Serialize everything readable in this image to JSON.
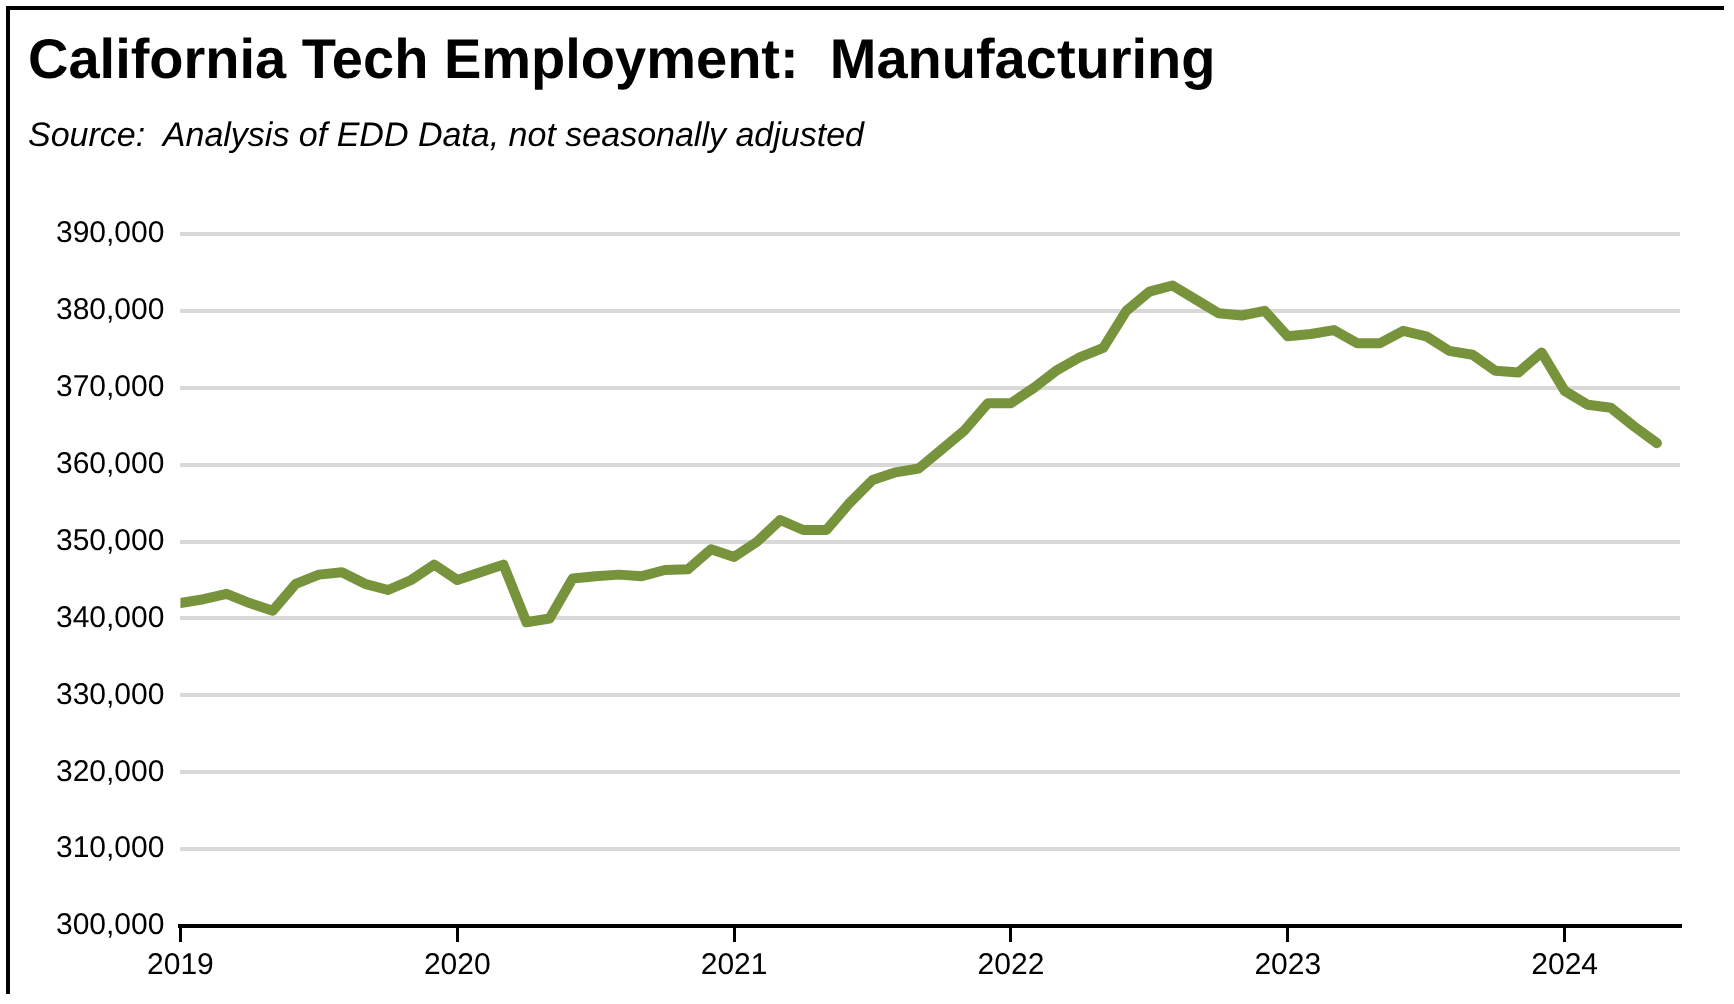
{
  "chart_data": {
    "type": "line",
    "title": "California Tech Employment:  Manufacturing",
    "subtitle": "Source:  Analysis of EDD Data, not seasonally adjusted",
    "x": [
      "2019-01",
      "2019-02",
      "2019-03",
      "2019-04",
      "2019-05",
      "2019-06",
      "2019-07",
      "2019-08",
      "2019-09",
      "2019-10",
      "2019-11",
      "2019-12",
      "2020-01",
      "2020-02",
      "2020-03",
      "2020-04",
      "2020-05",
      "2020-06",
      "2020-07",
      "2020-08",
      "2020-09",
      "2020-10",
      "2020-11",
      "2020-12",
      "2021-01",
      "2021-02",
      "2021-03",
      "2021-04",
      "2021-05",
      "2021-06",
      "2021-07",
      "2021-08",
      "2021-09",
      "2021-10",
      "2021-11",
      "2021-12",
      "2022-01",
      "2022-02",
      "2022-03",
      "2022-04",
      "2022-05",
      "2022-06",
      "2022-07",
      "2022-08",
      "2022-09",
      "2022-10",
      "2022-11",
      "2022-12",
      "2023-01",
      "2023-02",
      "2023-03",
      "2023-04",
      "2023-05",
      "2023-06",
      "2023-07",
      "2023-08",
      "2023-09",
      "2023-10",
      "2023-11",
      "2023-12",
      "2024-01",
      "2024-02",
      "2024-03",
      "2024-04",
      "2024-05"
    ],
    "series": [
      {
        "color": "#77933c",
        "values": [
          342000,
          342500,
          343200,
          342000,
          341000,
          344500,
          345700,
          346000,
          344500,
          343700,
          345000,
          347000,
          345000,
          346000,
          347000,
          339500,
          340000,
          345200,
          345500,
          345700,
          345500,
          346300,
          346400,
          349000,
          348000,
          350000,
          352800,
          351500,
          351500,
          355000,
          358000,
          359000,
          359500,
          362000,
          364500,
          368000,
          368000,
          370000,
          372300,
          374000,
          375200,
          380000,
          382500,
          383300,
          381500,
          379700,
          379400,
          380000,
          376700,
          377000,
          377500,
          375800,
          375800,
          377400,
          376700,
          374800,
          374300,
          372200,
          372000,
          374600,
          369600,
          367800,
          367400,
          365000,
          362800
        ]
      }
    ],
    "xlim": [
      "2019-01",
      "2024-06"
    ],
    "xticks": [
      "2019",
      "2020",
      "2021",
      "2022",
      "2023",
      "2024"
    ],
    "ylim": [
      300000,
      390000
    ],
    "yticks": [
      {
        "value": 300000,
        "label": "300,000"
      },
      {
        "value": 310000,
        "label": "310,000"
      },
      {
        "value": 320000,
        "label": "320,000"
      },
      {
        "value": 330000,
        "label": "330,000"
      },
      {
        "value": 340000,
        "label": "340,000"
      },
      {
        "value": 350000,
        "label": "350,000"
      },
      {
        "value": 360000,
        "label": "360,000"
      },
      {
        "value": 370000,
        "label": "370,000"
      },
      {
        "value": 380000,
        "label": "380,000"
      },
      {
        "value": 390000,
        "label": "390,000"
      }
    ],
    "grid": "y",
    "legend": false,
    "marker": "none",
    "line_style": "solid"
  }
}
